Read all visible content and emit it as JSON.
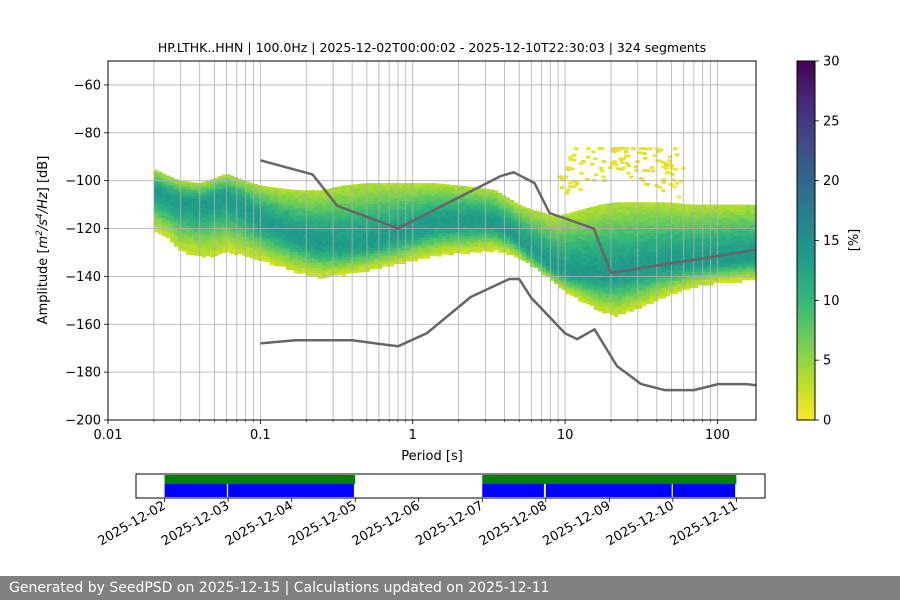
{
  "chart_data": {
    "type": "heatmap",
    "title": "HP.LTHK..HHN | 100.0Hz | 2025-12-02T00:00:02 - 2025-12-10T22:30:03 | 324 segments",
    "xlabel": "Period [s]",
    "ylabel_parts": [
      "Amplitude [",
      "m",
      "2",
      "/s",
      "4",
      "/Hz",
      "] [dB]"
    ],
    "xscale": "log",
    "xlim": [
      0.01,
      179
    ],
    "ylim": [
      -200,
      -50
    ],
    "x_ticks": [
      {
        "value": 0.01,
        "label": "0.01"
      },
      {
        "value": 0.1,
        "label": "0.1"
      },
      {
        "value": 1,
        "label": "1"
      },
      {
        "value": 10,
        "label": "10"
      },
      {
        "value": 100,
        "label": "100"
      }
    ],
    "y_ticks": [
      {
        "value": -60,
        "label": "−60"
      },
      {
        "value": -80,
        "label": "−80"
      },
      {
        "value": -100,
        "label": "−100"
      },
      {
        "value": -120,
        "label": "−120"
      },
      {
        "value": -140,
        "label": "−140"
      },
      {
        "value": -160,
        "label": "−160"
      },
      {
        "value": -180,
        "label": "−180"
      },
      {
        "value": -200,
        "label": "−200"
      }
    ],
    "grid": true,
    "colorbar": {
      "label": "[%]",
      "range": [
        0,
        30
      ],
      "ticks": [
        {
          "value": 0,
          "label": "0"
        },
        {
          "value": 5,
          "label": "5"
        },
        {
          "value": 10,
          "label": "10"
        },
        {
          "value": 15,
          "label": "15"
        },
        {
          "value": 20,
          "label": "20"
        },
        {
          "value": 25,
          "label": "25"
        },
        {
          "value": 30,
          "label": "30"
        }
      ],
      "colormap": [
        "#fde725",
        "#b5de2b",
        "#6ece58",
        "#35b779",
        "#1f9e89",
        "#26828e",
        "#31688e",
        "#3e4989",
        "#482878",
        "#440154"
      ]
    },
    "nhnm": {
      "name": "New High Noise Model",
      "periods": [
        0.1,
        0.22,
        0.32,
        0.8,
        3.8,
        4.6,
        6.3,
        7.9,
        15.4,
        20,
        354.8
      ],
      "db": [
        -91.5,
        -97.4,
        -110.5,
        -120,
        -98,
        -96.5,
        -101,
        -113.5,
        -120,
        -138.5,
        -126
      ]
    },
    "nlnm": {
      "name": "New Low Noise Model",
      "periods": [
        0.1,
        0.17,
        0.4,
        0.8,
        1.24,
        2.4,
        4.3,
        5,
        6,
        10,
        12,
        15.6,
        21.9,
        31.6,
        45,
        70,
        101,
        154,
        328
      ],
      "db": [
        -168,
        -166.7,
        -166.7,
        -169.2,
        -163.7,
        -148.6,
        -141.1,
        -141.1,
        -149,
        -163.8,
        -166.2,
        -162.1,
        -177.5,
        -185,
        -187.5,
        -187.5,
        -185,
        -185,
        -187.5
      ]
    },
    "psd_density": {
      "description": "probability density ridge (mode) and spread per period",
      "periods": [
        0.02,
        0.025,
        0.03,
        0.04,
        0.05,
        0.06,
        0.08,
        0.1,
        0.13,
        0.18,
        0.25,
        0.35,
        0.5,
        0.7,
        1.0,
        1.4,
        2.0,
        2.8,
        3.5,
        4.2,
        5.0,
        6.0,
        7.0,
        8.5,
        10,
        13,
        17,
        22,
        30,
        45,
        70,
        110,
        180
      ],
      "mode_db": [
        -104,
        -107,
        -109,
        -110,
        -108,
        -107,
        -111,
        -116,
        -120,
        -124,
        -126,
        -127,
        -126,
        -124,
        -121,
        -118,
        -117,
        -117,
        -118,
        -121,
        -125,
        -129,
        -132,
        -136,
        -138,
        -139,
        -139,
        -138,
        -137,
        -135,
        -134,
        -133,
        -132
      ],
      "upper_db": [
        -95,
        -98,
        -100,
        -101,
        -99,
        -97,
        -100,
        -102,
        -103,
        -104,
        -104,
        -102,
        -101,
        -101,
        -101,
        -101,
        -102,
        -103,
        -104,
        -107,
        -110,
        -112,
        -113,
        -115,
        -114,
        -112,
        -110,
        -109,
        -109,
        -109,
        -110,
        -110,
        -110
      ],
      "lower_db": [
        -120,
        -124,
        -129,
        -131,
        -131,
        -129,
        -131,
        -133,
        -135,
        -138,
        -140,
        -139,
        -137,
        -135,
        -133,
        -131,
        -130,
        -129,
        -129,
        -130,
        -132,
        -135,
        -138,
        -142,
        -146,
        -150,
        -154,
        -156,
        -153,
        -148,
        -144,
        -142,
        -141
      ],
      "outlier_cloud": {
        "period_range": [
          9,
          60
        ],
        "db_range": [
          -112,
          -86
        ]
      }
    }
  },
  "timeline": {
    "start_date": "2025-12-02",
    "end_date": "2025-12-11",
    "range_days": [
      -0.45,
      9.45
    ],
    "date_ticks": [
      {
        "day": 0,
        "label": "2025-12-02"
      },
      {
        "day": 1,
        "label": "2025-12-03"
      },
      {
        "day": 2,
        "label": "2025-12-04"
      },
      {
        "day": 3,
        "label": "2025-12-05"
      },
      {
        "day": 4,
        "label": "2025-12-06"
      },
      {
        "day": 5,
        "label": "2025-12-07"
      },
      {
        "day": 6,
        "label": "2025-12-08"
      },
      {
        "day": 7,
        "label": "2025-12-09"
      },
      {
        "day": 8,
        "label": "2025-12-10"
      },
      {
        "day": 9,
        "label": "2025-12-11"
      }
    ],
    "green_spans": [
      [
        0.0,
        3.0
      ],
      [
        5.0,
        9.0
      ]
    ],
    "blue_spans": [
      [
        0.0,
        0.98
      ],
      [
        1.0,
        2.98
      ],
      [
        5.0,
        5.97
      ],
      [
        6.0,
        7.98
      ],
      [
        8.0,
        8.98
      ]
    ],
    "colors": {
      "green": "#008000",
      "blue": "#0000ff"
    }
  },
  "footer": {
    "text": "Generated by SeedPSD on 2025-12-15 | Calculations updated on 2025-12-11"
  }
}
